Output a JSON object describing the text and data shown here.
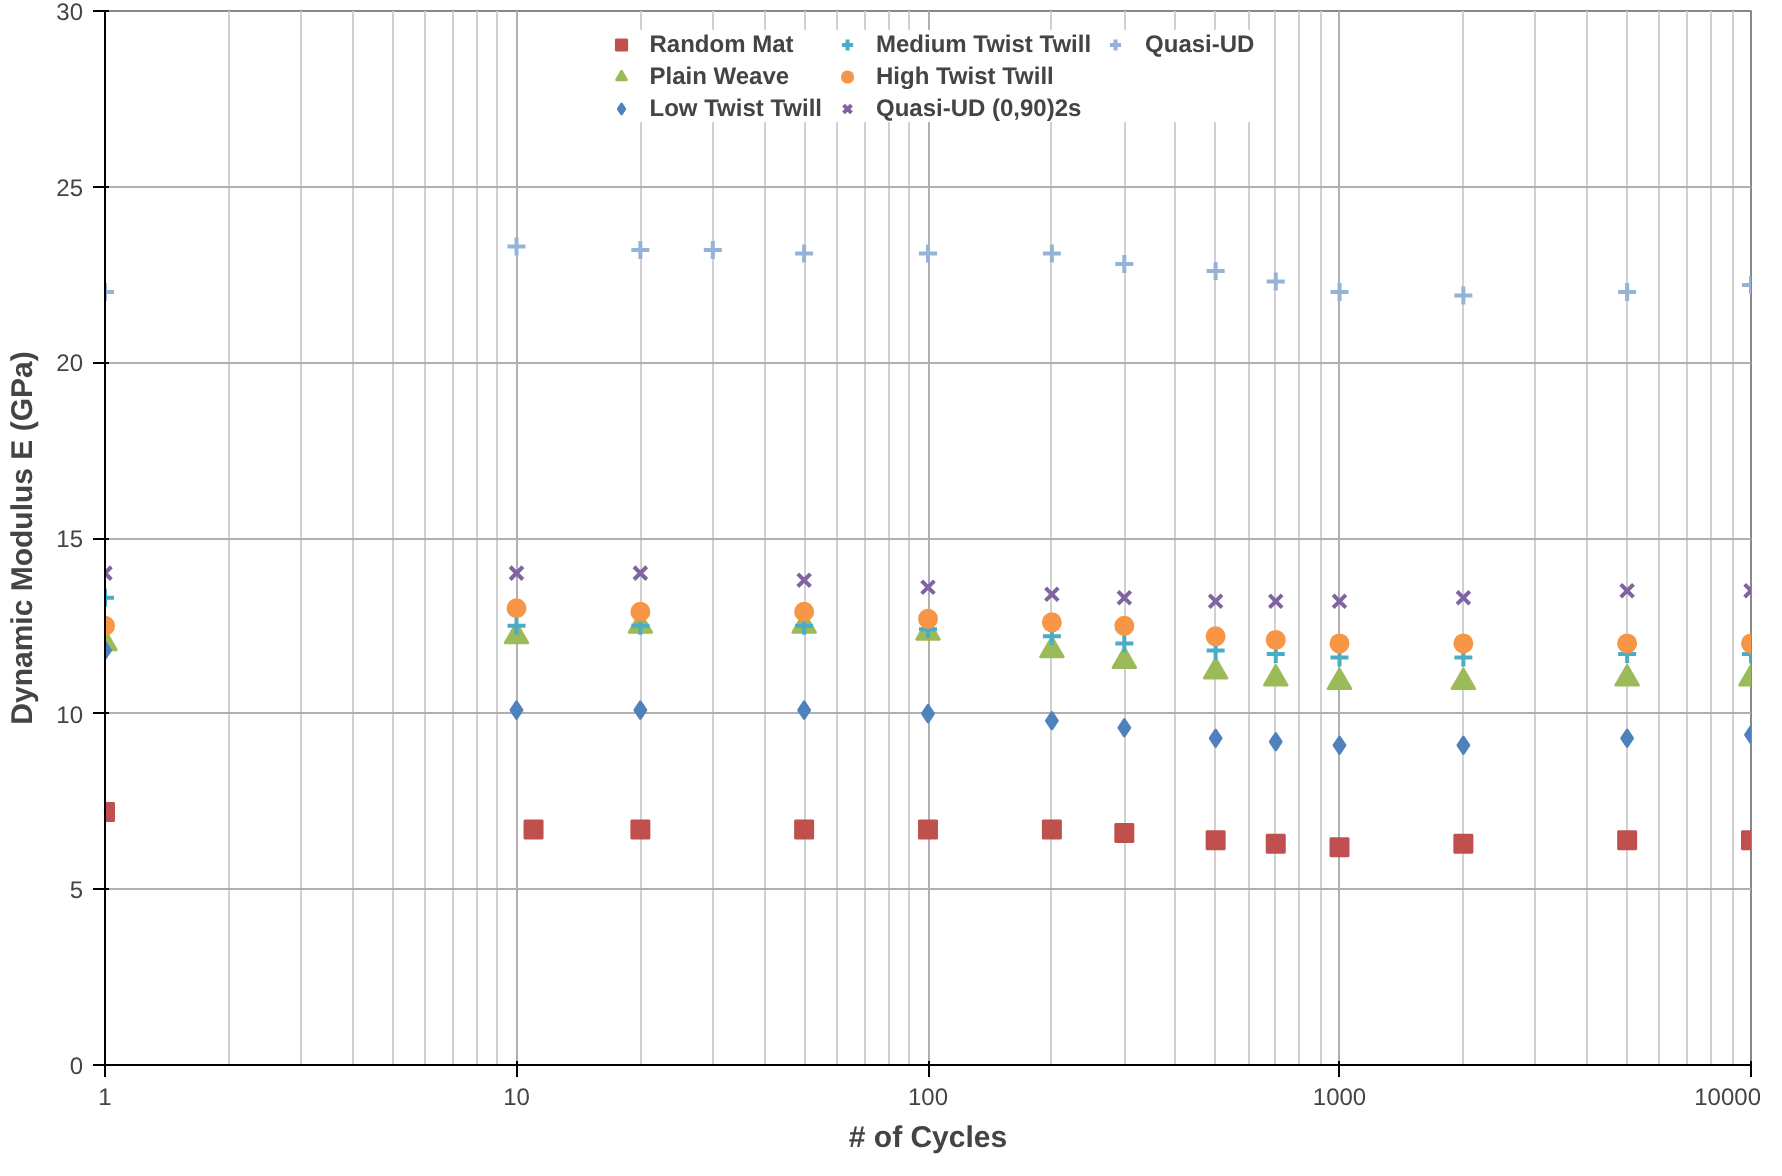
{
  "chart_data": {
    "type": "scatter",
    "xlabel": "# of Cycles",
    "ylabel": "Dynamic Modulus E (GPa)",
    "log": "x",
    "xlim": [
      1,
      10000
    ],
    "xticks": [
      1,
      10,
      100,
      1000,
      10000
    ],
    "ylim": [
      0,
      30
    ],
    "yticks": [
      0,
      5,
      10,
      15,
      20,
      25,
      30
    ],
    "grid": true,
    "legend": "top",
    "series": [
      {
        "name": "Random Mat",
        "color": "#c0504d",
        "marker": "square",
        "x": [
          1,
          11,
          20,
          50,
          100,
          200,
          300,
          500,
          700,
          1000,
          2000,
          5000,
          10000
        ],
        "values": [
          7.2,
          6.7,
          6.7,
          6.7,
          6.7,
          6.7,
          6.6,
          6.4,
          6.3,
          6.2,
          6.3,
          6.4,
          6.4
        ]
      },
      {
        "name": "Plain Weave",
        "color": "#9bbb59",
        "marker": "triangle",
        "x": [
          1,
          10,
          20,
          50,
          100,
          200,
          300,
          500,
          700,
          1000,
          2000,
          5000,
          10000
        ],
        "values": [
          12.0,
          12.2,
          12.5,
          12.5,
          12.3,
          11.8,
          11.5,
          11.2,
          11.0,
          10.9,
          10.9,
          11.0,
          11.0
        ]
      },
      {
        "name": "Low Twist Twill",
        "color": "#4f81bd",
        "marker": "diamond",
        "x": [
          1,
          10,
          20,
          50,
          100,
          200,
          300,
          500,
          700,
          1000,
          2000,
          5000,
          10000
        ],
        "values": [
          11.8,
          10.1,
          10.1,
          10.1,
          10.0,
          9.8,
          9.6,
          9.3,
          9.2,
          9.1,
          9.1,
          9.3,
          9.4
        ]
      },
      {
        "name": "Medium Twist Twill",
        "color": "#4bacc6",
        "marker": "cross",
        "x": [
          1,
          10,
          20,
          50,
          100,
          200,
          300,
          500,
          700,
          1000,
          2000,
          5000,
          10000
        ],
        "values": [
          13.3,
          12.5,
          12.5,
          12.5,
          12.4,
          12.2,
          12.0,
          11.8,
          11.7,
          11.6,
          11.6,
          11.7,
          11.7
        ]
      },
      {
        "name": "High Twist Twill",
        "color": "#f79646",
        "marker": "circle",
        "x": [
          1,
          10,
          20,
          50,
          100,
          200,
          300,
          500,
          700,
          1000,
          2000,
          5000,
          10000
        ],
        "values": [
          12.5,
          13.0,
          12.9,
          12.9,
          12.7,
          12.6,
          12.5,
          12.2,
          12.1,
          12.0,
          12.0,
          12.0,
          12.0
        ]
      },
      {
        "name": "Quasi-UD (0,90)2s",
        "color": "#8064a2",
        "marker": "x",
        "x": [
          1,
          10,
          20,
          50,
          100,
          200,
          300,
          500,
          700,
          1000,
          2000,
          5000,
          10000
        ],
        "values": [
          14.0,
          14.0,
          14.0,
          13.8,
          13.6,
          13.4,
          13.3,
          13.2,
          13.2,
          13.2,
          13.3,
          13.5,
          13.5
        ]
      },
      {
        "name": "Quasi-UD",
        "color": "#95b3d7",
        "marker": "cross",
        "x": [
          1,
          10,
          20,
          30,
          50,
          100,
          200,
          300,
          500,
          700,
          1000,
          2000,
          5000,
          10000
        ],
        "values": [
          22.0,
          23.3,
          23.2,
          23.2,
          23.1,
          23.1,
          23.1,
          22.8,
          22.6,
          22.3,
          22.0,
          21.9,
          22.0,
          22.2
        ]
      }
    ]
  }
}
